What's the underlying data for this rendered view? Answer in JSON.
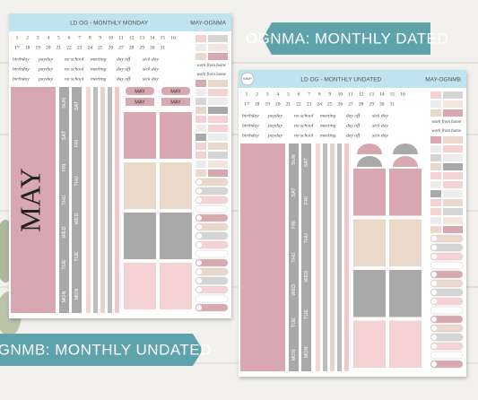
{
  "banners": {
    "top": "OGNMA: MONTHLY DATED",
    "bottom": "OGNMB: MONTHLY UNDATED"
  },
  "sheets": [
    {
      "title": "LD OG - MONTHLY MONDAY",
      "code": "MAY-OGNMA",
      "numbers": [
        1,
        2,
        3,
        4,
        5,
        6,
        7,
        8,
        9,
        10,
        11,
        12,
        13,
        14,
        15,
        16,
        17,
        18,
        19,
        20,
        21,
        22,
        23,
        24,
        25,
        26,
        27,
        28,
        29,
        30,
        31
      ],
      "words": [
        "birthday",
        "payday",
        "no school",
        "meeting",
        "day off",
        "sick day"
      ],
      "extra": "work from home",
      "month": "MAY",
      "tabs": [
        "MAY",
        "MAY",
        "MAY",
        "MAY"
      ],
      "days": [
        "SUN",
        "SAT",
        "FRI",
        "THU",
        "WED",
        "TUE",
        "MON"
      ]
    },
    {
      "title": "LD OG - MONTHLY UNDATED",
      "code": "MAY-OGNMB",
      "logo": "MMP",
      "numbers": [
        1,
        2,
        3,
        4,
        5,
        6,
        7,
        8,
        9,
        10,
        11,
        12,
        13,
        14,
        15,
        16,
        17,
        18,
        19,
        20,
        21,
        22,
        23,
        24,
        25,
        26,
        27,
        28,
        29,
        30,
        31
      ],
      "words": [
        "birthday",
        "payday",
        "no school",
        "meeting",
        "day off",
        "sick day"
      ],
      "extra": "work from home",
      "days": [
        "SUN",
        "SAT",
        "FRI",
        "THU",
        "WED",
        "TUE",
        "MON"
      ]
    }
  ]
}
